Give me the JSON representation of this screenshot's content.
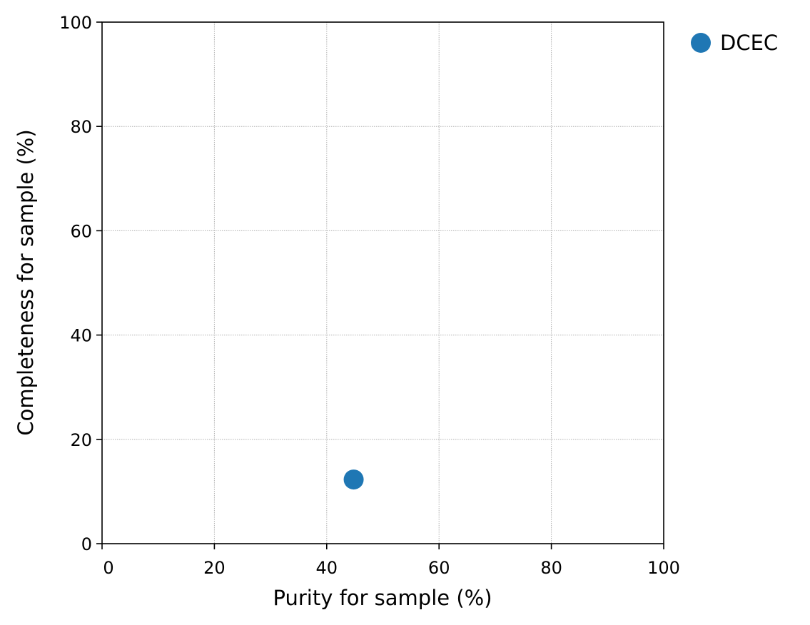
{
  "chart_data": {
    "type": "scatter",
    "xlabel": "Purity for sample (%)",
    "ylabel": "Completeness for sample (%)",
    "xlim": [
      0,
      100
    ],
    "ylim": [
      0,
      100
    ],
    "xticks": [
      0,
      20,
      40,
      60,
      80,
      100
    ],
    "yticks": [
      0,
      20,
      40,
      60,
      80,
      100
    ],
    "grid": true,
    "legend_position": "outside-top-right",
    "series": [
      {
        "name": "DCEC",
        "color": "#1f77b4",
        "x": [
          44.8
        ],
        "y": [
          12.3
        ]
      }
    ]
  }
}
